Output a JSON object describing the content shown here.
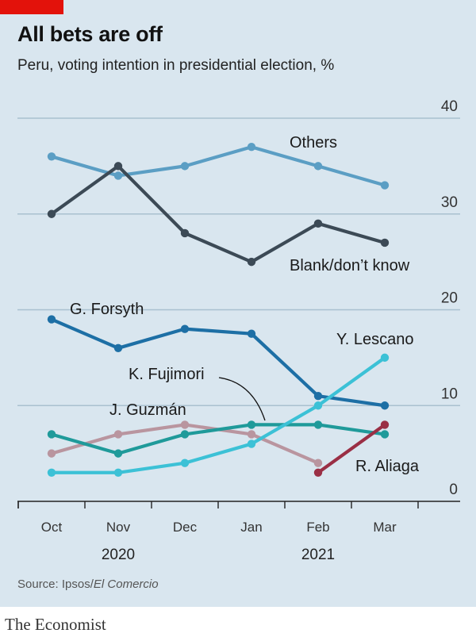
{
  "header": {
    "title": "All bets are off",
    "subtitle": "Peru, voting intention in presidential election, %"
  },
  "source": {
    "prefix": "Source: Ipsos/",
    "publication": "El Comercio"
  },
  "footer": {
    "brand": "The Economist"
  },
  "colors": {
    "background": "#d9e6ef",
    "brand_red": "#e3120b",
    "Others": "#5b9ec4",
    "Blank/don’t know": "#3c4a56",
    "G. Forsyth": "#1d6fa5",
    "Y. Lescano": "#3cc1d6",
    "K. Fujimori": "#1f9a9a",
    "J. Guzmán": "#b9959f",
    "R. Aliaga": "#9a2f45"
  },
  "chart_data": {
    "type": "line",
    "x": [
      "Oct",
      "Nov",
      "Dec",
      "Jan",
      "Feb",
      "Mar"
    ],
    "year_labels": [
      {
        "label": "2020",
        "x_index": 1
      },
      {
        "label": "2021",
        "x_index": 4
      }
    ],
    "ylim": [
      0,
      40
    ],
    "yticks": [
      0,
      10,
      20,
      30,
      40
    ],
    "ytick_position": "right",
    "grid": true,
    "legend": "inline labels",
    "series": [
      {
        "name": "Others",
        "values": [
          36,
          34,
          35,
          37,
          35,
          33
        ]
      },
      {
        "name": "Blank/don’t know",
        "values": [
          30,
          35,
          28,
          25,
          29,
          27
        ]
      },
      {
        "name": "G. Forsyth",
        "values": [
          19,
          16,
          18,
          17.5,
          11,
          10
        ]
      },
      {
        "name": "Y. Lescano",
        "values": [
          3,
          3,
          4,
          6,
          10,
          15
        ]
      },
      {
        "name": "K. Fujimori",
        "values": [
          7,
          5,
          7,
          8,
          8,
          7
        ]
      },
      {
        "name": "J. Guzmán",
        "values": [
          5,
          7,
          8,
          7,
          4,
          null
        ]
      },
      {
        "name": "R. Aliaga",
        "values": [
          null,
          null,
          null,
          null,
          3,
          8
        ]
      }
    ]
  }
}
